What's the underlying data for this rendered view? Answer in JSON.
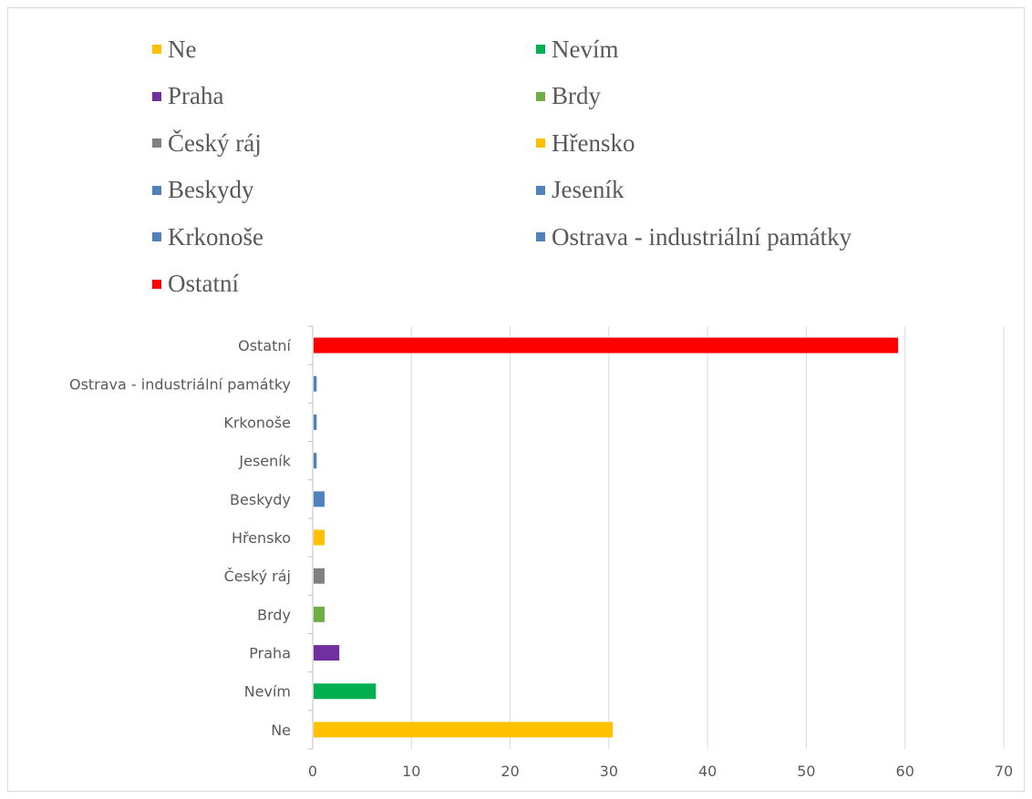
{
  "chart_data": {
    "type": "bar",
    "orientation": "horizontal",
    "title": "",
    "xlabel": "",
    "ylabel": "",
    "xlim": [
      0,
      70
    ],
    "xticks": [
      "0",
      "10",
      "20",
      "30",
      "40",
      "50",
      "60",
      "70"
    ],
    "grid": true,
    "legend_position": "top",
    "categories": [
      "Ne",
      "Nevím",
      "Praha",
      "Brdy",
      "Český ráj",
      "Hřensko",
      "Beskydy",
      "Jeseník",
      "Krkonoše",
      "Ostrava - industriální památky",
      "Ostatní"
    ],
    "values": [
      30.4,
      6.4,
      2.7,
      1.2,
      1.2,
      1.2,
      1.2,
      0.4,
      0.4,
      0.4,
      59.3
    ],
    "colors": [
      "#FFC000",
      "#00B050",
      "#7030A0",
      "#70AD47",
      "#808080",
      "#FFC000",
      "#4F81BD",
      "#4F81BD",
      "#4F81BD",
      "#4F81BD",
      "#FF0000"
    ]
  }
}
